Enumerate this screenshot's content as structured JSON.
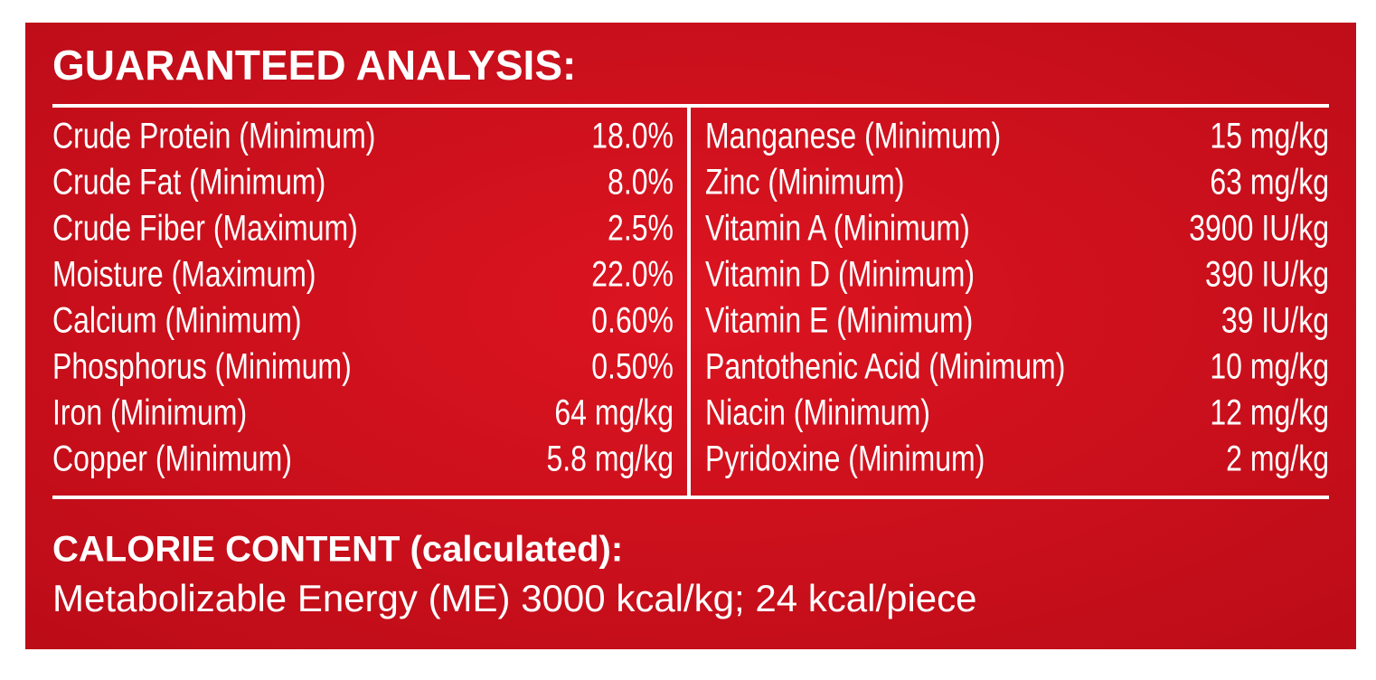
{
  "header": {
    "title": "GUARANTEED ANALYSIS:"
  },
  "table": {
    "left": [
      [
        "Crude Protein (Minimum)",
        "18.0%"
      ],
      [
        "Crude Fat (Minimum)",
        "8.0%"
      ],
      [
        "Crude Fiber (Maximum)",
        "2.5%"
      ],
      [
        "Moisture (Maximum)",
        "22.0%"
      ],
      [
        "Calcium (Minimum)",
        "0.60%"
      ],
      [
        "Phosphorus (Minimum)",
        "0.50%"
      ],
      [
        "Iron (Minimum)",
        "64 mg/kg"
      ],
      [
        "Copper (Minimum)",
        "5.8 mg/kg"
      ]
    ],
    "right": [
      [
        "Manganese (Minimum)",
        "15 mg/kg"
      ],
      [
        "Zinc (Minimum)",
        "63 mg/kg"
      ],
      [
        "Vitamin A (Minimum)",
        "3900 IU/kg"
      ],
      [
        "Vitamin D (Minimum)",
        "390 IU/kg"
      ],
      [
        "Vitamin E (Minimum)",
        "39 IU/kg"
      ],
      [
        "Pantothenic Acid (Minimum)",
        "10 mg/kg"
      ],
      [
        "Niacin (Minimum)",
        "12 mg/kg"
      ],
      [
        "Pyridoxine (Minimum)",
        "2 mg/kg"
      ]
    ]
  },
  "footer": {
    "heading": "CALORIE CONTENT (calculated):",
    "text": "Metabolizable Energy (ME) 3000 kcal/kg; 24 kcal/piece"
  }
}
